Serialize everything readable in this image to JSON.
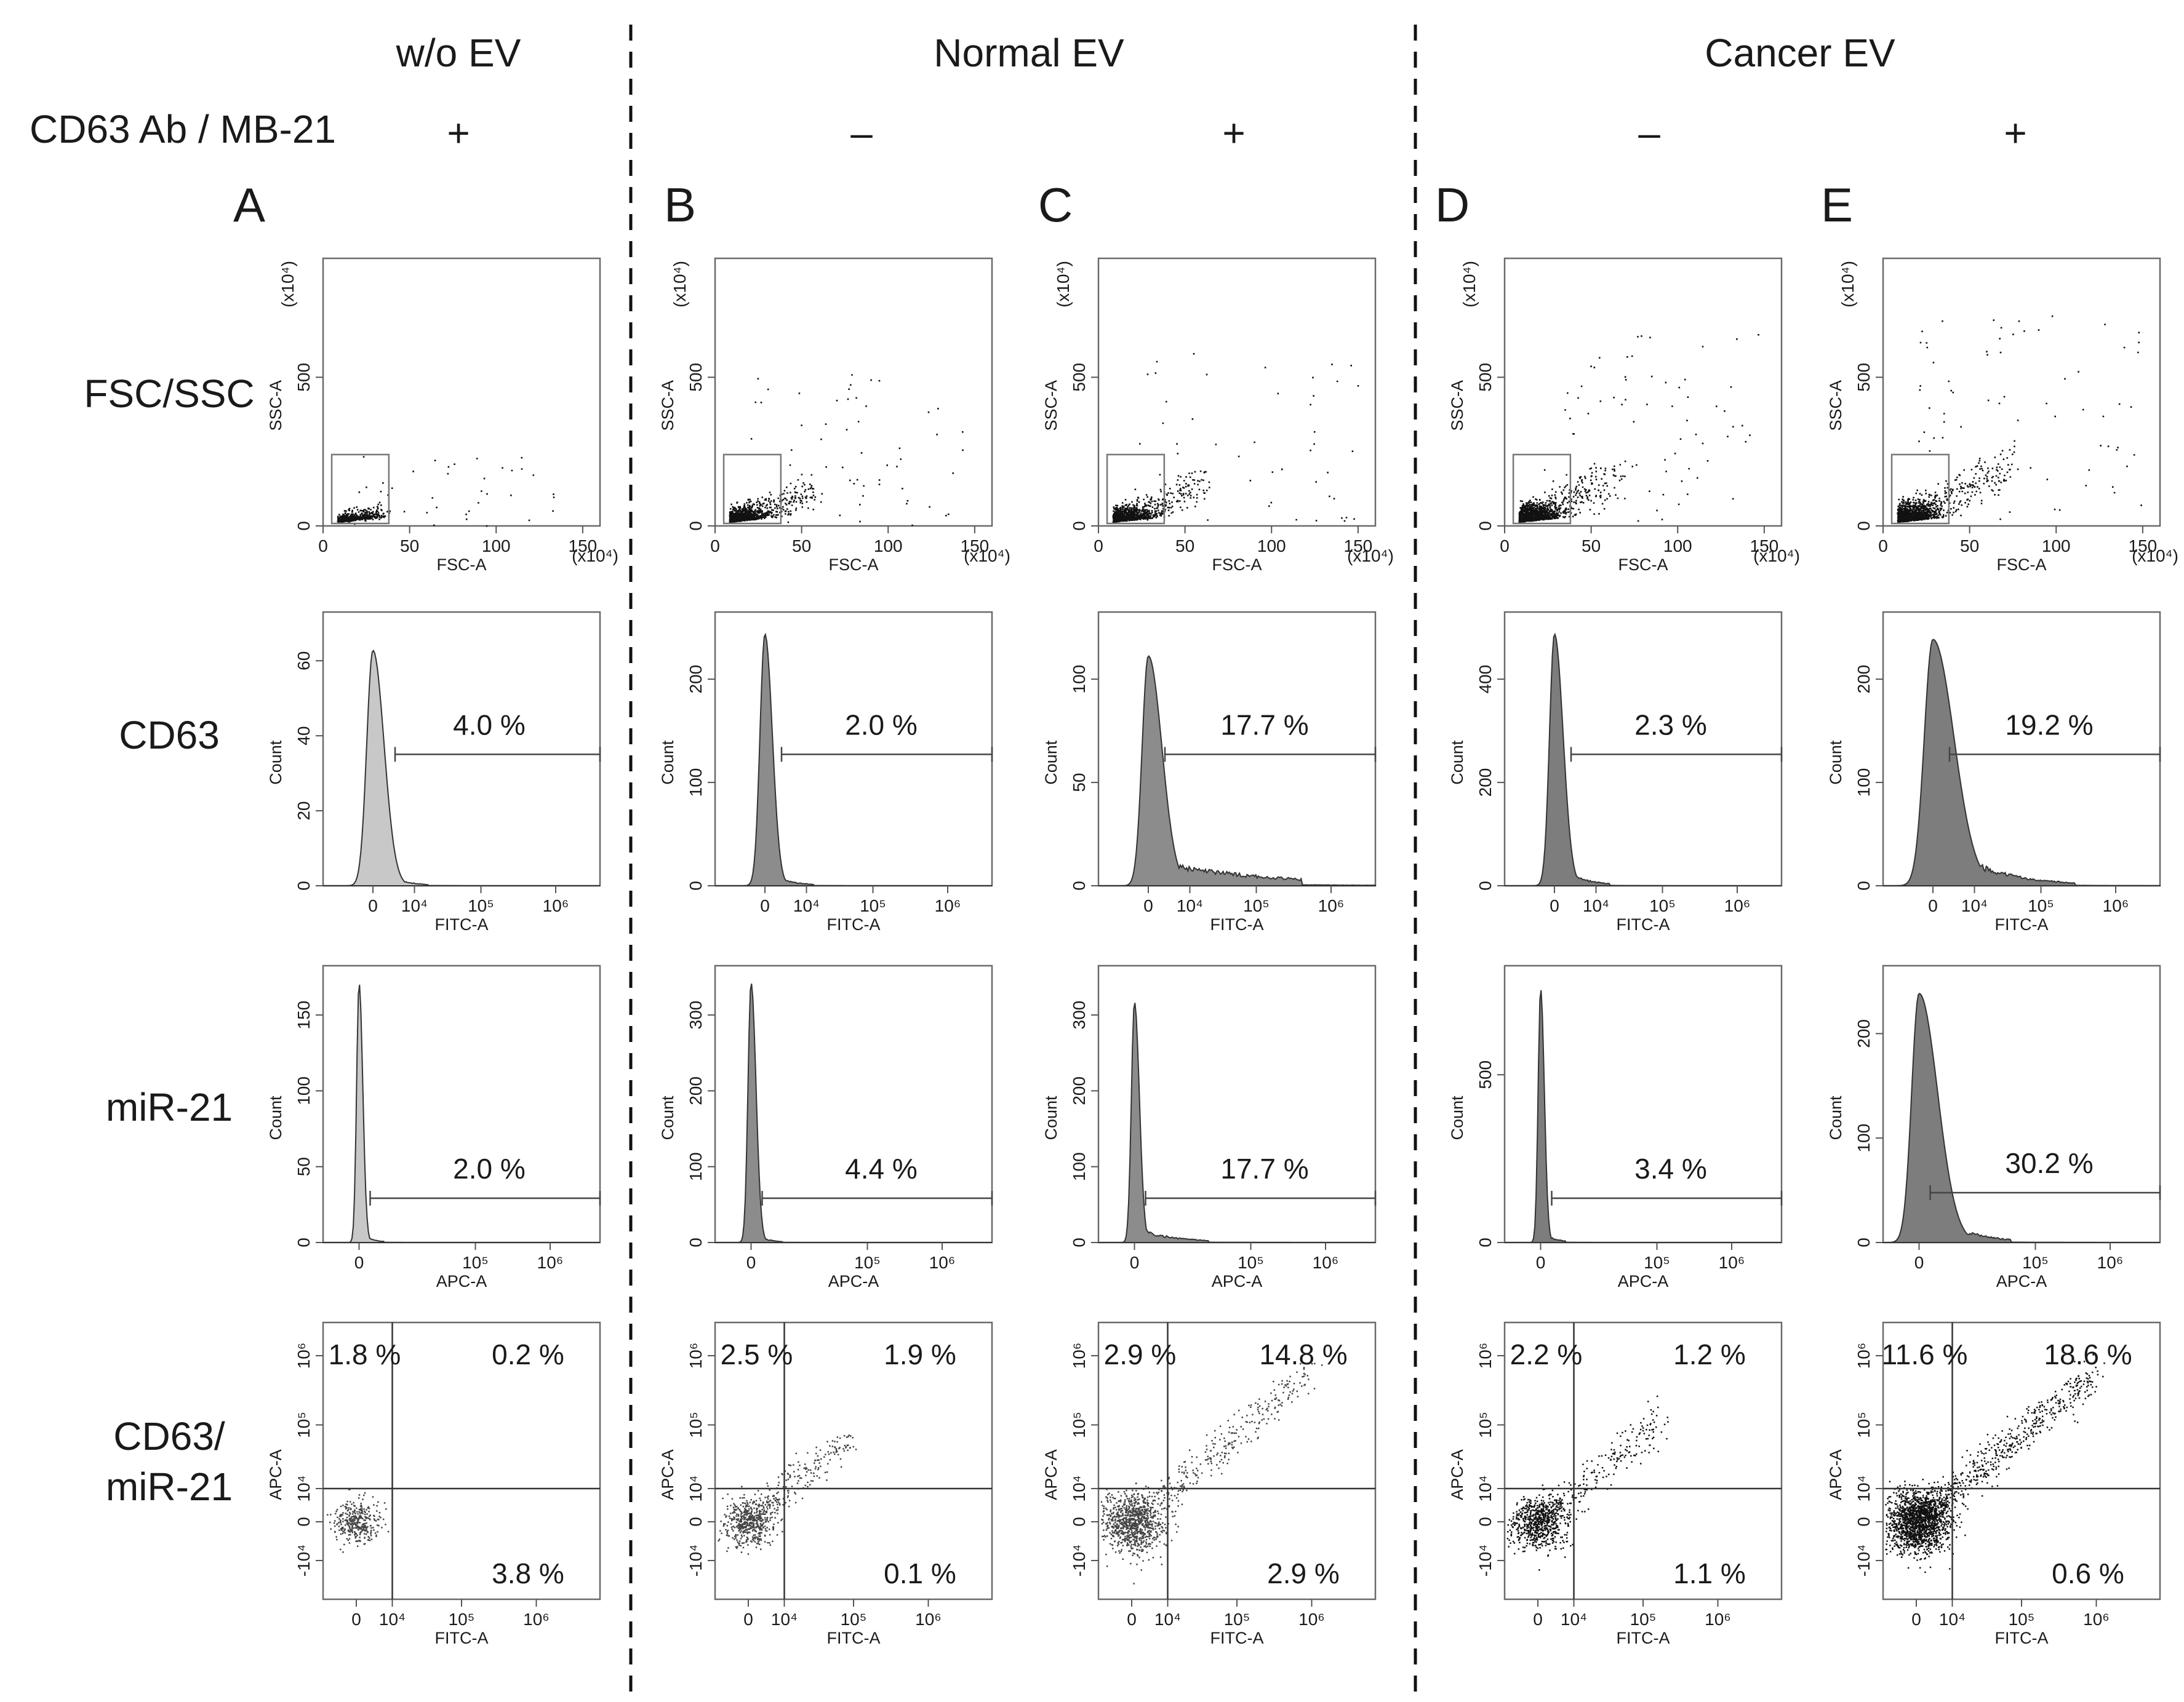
{
  "chart_data": {
    "type": "flow_cytometry_panel_grid",
    "conditions": [
      "w/o EV",
      "Normal EV",
      "Cancer EV"
    ],
    "reagent_label": "CD63 Ab / MB-21",
    "columns": [
      {
        "panel": "A",
        "reagent": "+"
      },
      {
        "panel": "B",
        "reagent": "-"
      },
      {
        "panel": "C",
        "reagent": "+"
      },
      {
        "panel": "D",
        "reagent": "-"
      },
      {
        "panel": "E",
        "reagent": "+"
      }
    ],
    "rows": [
      "FSC/SSC",
      "CD63",
      "miR-21",
      "CD63/\nmiR-21"
    ],
    "scatter": {
      "xlabel": "FSC-A",
      "ylabel": "SSC-A",
      "x_mult": "(x10⁴)",
      "y_mult": "(x10⁴)",
      "xticks": [
        "0",
        "50",
        "100",
        "150"
      ],
      "yticks": [
        "0",
        "500"
      ],
      "xlim": [
        0,
        160
      ],
      "ylim": [
        0,
        900
      ],
      "gate": {
        "x": [
          5,
          38
        ],
        "y": [
          0,
          240
        ]
      }
    },
    "cd63": {
      "xlabel": "FITC-A",
      "ylabel": "Count",
      "xticks": [
        "0",
        "10⁴",
        "10⁵",
        "10⁶"
      ],
      "yticks": [
        [
          "0",
          "20",
          "40",
          "60"
        ],
        [
          "0",
          "100",
          "200"
        ],
        [
          "0",
          "50",
          "100"
        ],
        [
          "0",
          "200",
          "400"
        ],
        [
          "0",
          "100",
          "200"
        ]
      ],
      "percent": [
        "4.0 %",
        "2.0 %",
        "17.7 %",
        "2.3 %",
        "19.2 %"
      ]
    },
    "mir21": {
      "xlabel": "APC-A",
      "ylabel": "Count",
      "xticks": [
        "0",
        "10⁵",
        "10⁶"
      ],
      "yticks": [
        [
          "0",
          "50",
          "100",
          "150"
        ],
        [
          "0",
          "100",
          "200",
          "300"
        ],
        [
          "0",
          "100",
          "200",
          "300"
        ],
        [
          "0",
          "500"
        ],
        [
          "0",
          "100",
          "200"
        ]
      ],
      "percent": [
        "2.0 %",
        "4.4 %",
        "17.7 %",
        "3.4 %",
        "30.2 %"
      ]
    },
    "quadrant": {
      "xlabel": "FITC-A",
      "ylabel": "APC-A",
      "xticks": [
        "0",
        "10⁴",
        "10⁵",
        "10⁶"
      ],
      "yticks": [
        "-10⁴",
        "0",
        "10⁴",
        "10⁵",
        "10⁶"
      ],
      "upper_left": [
        "1.8 %",
        "2.5 %",
        "2.9 %",
        "2.2 %",
        "11.6 %"
      ],
      "upper_right": [
        "0.2 %",
        "1.9 %",
        "14.8 %",
        "1.2 %",
        "18.6 %"
      ],
      "lower_right": [
        "3.8 %",
        "0.1 %",
        "2.9 %",
        "1.1 %",
        "0.6 %"
      ]
    }
  }
}
